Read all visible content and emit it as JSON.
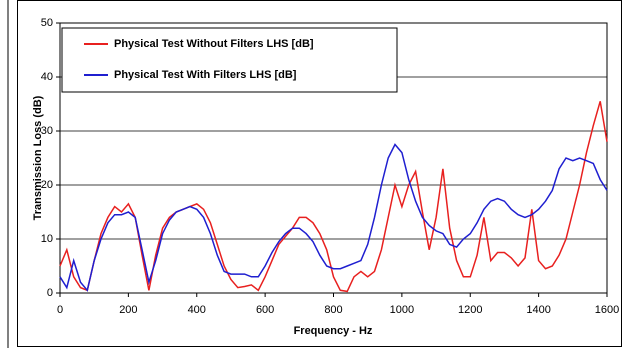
{
  "chart_data": {
    "type": "line",
    "x_label": "Frequency - Hz",
    "y_label": "Transmission Loss (dB)",
    "x": [
      0,
      20,
      40,
      60,
      80,
      100,
      120,
      140,
      160,
      180,
      200,
      220,
      240,
      260,
      280,
      300,
      320,
      340,
      360,
      380,
      400,
      420,
      440,
      460,
      480,
      500,
      520,
      540,
      560,
      580,
      600,
      620,
      640,
      660,
      680,
      700,
      720,
      740,
      760,
      780,
      800,
      820,
      840,
      860,
      880,
      900,
      920,
      940,
      960,
      980,
      1000,
      1020,
      1040,
      1060,
      1080,
      1100,
      1120,
      1140,
      1160,
      1180,
      1200,
      1220,
      1240,
      1260,
      1280,
      1300,
      1320,
      1340,
      1360,
      1380,
      1400,
      1420,
      1440,
      1460,
      1480,
      1500,
      1520,
      1540,
      1560,
      1580,
      1600
    ],
    "series": [
      {
        "name": "Physical Test Without Filters LHS [dB]",
        "color": "#e8201f",
        "values": [
          5,
          8,
          3,
          1,
          0.5,
          6,
          11,
          14,
          16,
          15,
          16.5,
          14,
          7,
          0.5,
          7,
          12,
          14,
          15,
          15.5,
          16,
          16.5,
          15.5,
          13,
          9,
          5,
          2.5,
          1,
          1.2,
          1.5,
          0.5,
          3,
          6,
          9,
          10.5,
          12,
          14,
          14,
          13,
          11,
          8,
          3,
          0.5,
          0.3,
          3,
          4,
          3,
          4,
          8,
          14,
          20,
          16,
          20,
          22.5,
          15,
          8,
          14,
          23,
          12,
          6,
          3,
          3,
          7,
          14,
          6,
          7.5,
          7.5,
          6.5,
          5,
          6.5,
          15.5,
          6,
          4.5,
          5,
          7,
          10,
          15,
          20,
          26,
          31,
          35.5,
          28
        ]
      },
      {
        "name": "Physical Test With Filters LHS [dB]",
        "color": "#1f1fd0",
        "values": [
          3,
          1,
          6,
          2,
          0.5,
          6,
          10,
          13,
          14.5,
          14.5,
          15,
          14,
          8,
          2,
          6,
          11,
          13.5,
          15,
          15.5,
          16,
          15.5,
          14,
          11,
          7,
          4,
          3.5,
          3.5,
          3.5,
          3,
          3,
          5,
          7.5,
          9.5,
          11,
          12,
          12,
          11,
          9.5,
          7,
          5,
          4.5,
          4.5,
          5,
          5.5,
          6,
          9,
          14,
          20,
          25,
          27.5,
          26,
          21,
          17,
          14,
          12.5,
          11.5,
          11,
          9,
          8.5,
          10,
          11,
          13,
          15.5,
          17,
          17.5,
          17,
          15.5,
          14.5,
          14,
          14.5,
          15.5,
          17,
          19,
          23,
          25,
          24.5,
          25,
          24.5,
          24,
          21,
          19
        ]
      }
    ],
    "xlim": [
      0,
      1600
    ],
    "xticks": [
      0,
      200,
      400,
      600,
      800,
      1000,
      1200,
      1400,
      1600
    ],
    "ylim": [
      0,
      50
    ],
    "yticks": [
      0,
      10,
      20,
      30,
      40,
      50
    ],
    "grid": true
  }
}
